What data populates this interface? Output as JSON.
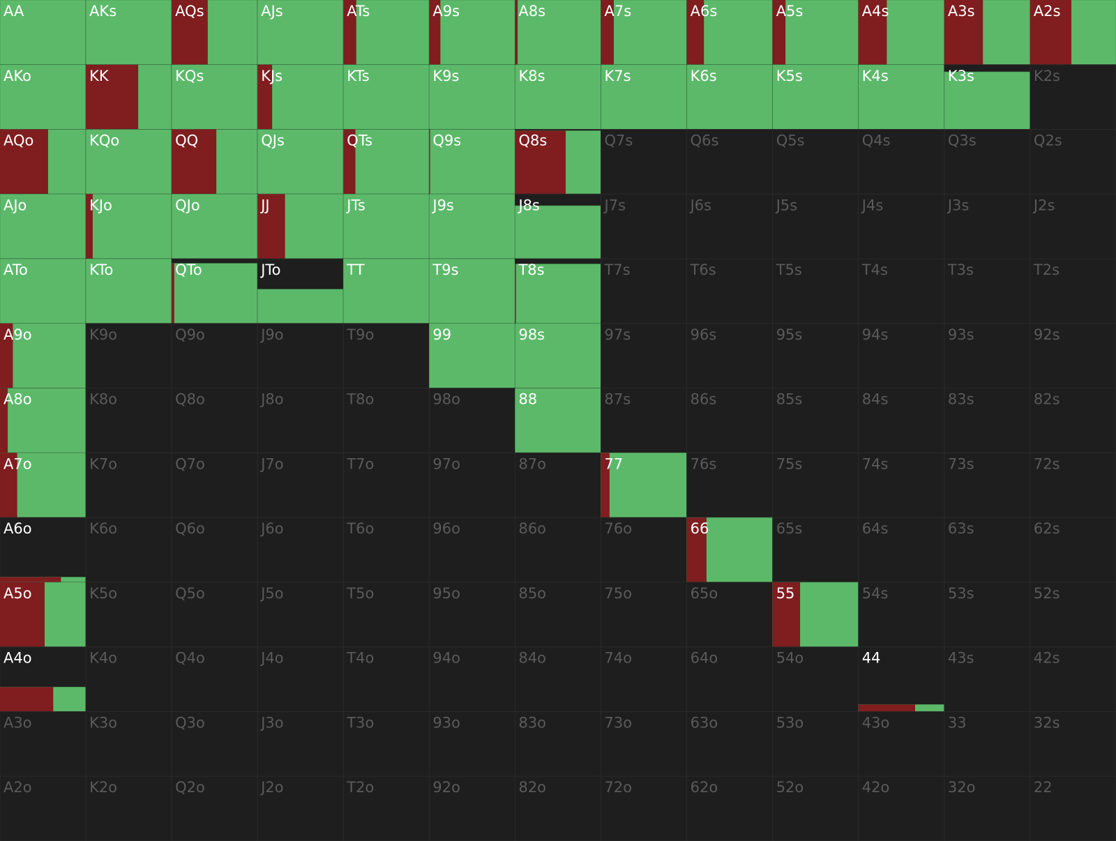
{
  "hands": [
    [
      {
        "label": "AA",
        "freq": 100,
        "raise": 0
      },
      {
        "label": "AKs",
        "freq": 100,
        "raise": 0
      },
      {
        "label": "AQs",
        "freq": 100,
        "raise": 42
      },
      {
        "label": "AJs",
        "freq": 100,
        "raise": 0
      },
      {
        "label": "ATs",
        "freq": 100,
        "raise": 15
      },
      {
        "label": "A9s",
        "freq": 100,
        "raise": 13
      },
      {
        "label": "A8s",
        "freq": 100,
        "raise": 3
      },
      {
        "label": "A7s",
        "freq": 100,
        "raise": 15
      },
      {
        "label": "A6s",
        "freq": 100,
        "raise": 20
      },
      {
        "label": "A5s",
        "freq": 100,
        "raise": 15
      },
      {
        "label": "A4s",
        "freq": 100,
        "raise": 33
      },
      {
        "label": "A3s",
        "freq": 100,
        "raise": 45
      },
      {
        "label": "A2s",
        "freq": 100,
        "raise": 48
      }
    ],
    [
      {
        "label": "AKo",
        "freq": 100,
        "raise": 0
      },
      {
        "label": "KK",
        "freq": 100,
        "raise": 61
      },
      {
        "label": "KQs",
        "freq": 100,
        "raise": 0
      },
      {
        "label": "KJs",
        "freq": 100,
        "raise": 17
      },
      {
        "label": "KTs",
        "freq": 100,
        "raise": 0
      },
      {
        "label": "K9s",
        "freq": 100,
        "raise": 0
      },
      {
        "label": "K8s",
        "freq": 100,
        "raise": 0
      },
      {
        "label": "K7s",
        "freq": 100,
        "raise": 0
      },
      {
        "label": "K6s",
        "freq": 100,
        "raise": 0
      },
      {
        "label": "K5s",
        "freq": 100,
        "raise": 0
      },
      {
        "label": "K4s",
        "freq": 100,
        "raise": 0
      },
      {
        "label": "K3s",
        "freq": 89,
        "raise": 0
      },
      {
        "label": "K2s",
        "freq": 0,
        "raise": 0
      }
    ],
    [
      {
        "label": "AQo",
        "freq": 100,
        "raise": 56
      },
      {
        "label": "KQo",
        "freq": 100,
        "raise": 0
      },
      {
        "label": "QQ",
        "freq": 100,
        "raise": 52
      },
      {
        "label": "QJs",
        "freq": 100,
        "raise": 0
      },
      {
        "label": "QTs",
        "freq": 100,
        "raise": 14
      },
      {
        "label": "Q9s",
        "freq": 100,
        "raise": 1
      },
      {
        "label": "Q8s",
        "freq": 98,
        "raise": 59
      },
      {
        "label": "Q7s",
        "freq": 0,
        "raise": 0
      },
      {
        "label": "Q6s",
        "freq": 0,
        "raise": 0
      },
      {
        "label": "Q5s",
        "freq": 0,
        "raise": 0
      },
      {
        "label": "Q4s",
        "freq": 0,
        "raise": 0
      },
      {
        "label": "Q3s",
        "freq": 0,
        "raise": 0
      },
      {
        "label": "Q2s",
        "freq": 0,
        "raise": 0
      }
    ],
    [
      {
        "label": "AJo",
        "freq": 100,
        "raise": 0
      },
      {
        "label": "KJo",
        "freq": 100,
        "raise": 8
      },
      {
        "label": "QJo",
        "freq": 100,
        "raise": 0
      },
      {
        "label": "JJ",
        "freq": 100,
        "raise": 32
      },
      {
        "label": "JTs",
        "freq": 100,
        "raise": 0
      },
      {
        "label": "J9s",
        "freq": 100,
        "raise": 0
      },
      {
        "label": "J8s",
        "freq": 82,
        "raise": 0
      },
      {
        "label": "J7s",
        "freq": 0,
        "raise": 0
      },
      {
        "label": "J6s",
        "freq": 0,
        "raise": 0
      },
      {
        "label": "J5s",
        "freq": 0,
        "raise": 0
      },
      {
        "label": "J4s",
        "freq": 0,
        "raise": 0
      },
      {
        "label": "J3s",
        "freq": 0,
        "raise": 0
      },
      {
        "label": "J2s",
        "freq": 0,
        "raise": 0
      }
    ],
    [
      {
        "label": "ATo",
        "freq": 100,
        "raise": 0
      },
      {
        "label": "KTo",
        "freq": 100,
        "raise": 0
      },
      {
        "label": "QTo",
        "freq": 93,
        "raise": 3
      },
      {
        "label": "JTo",
        "freq": 53,
        "raise": 0
      },
      {
        "label": "TT",
        "freq": 100,
        "raise": 0
      },
      {
        "label": "T9s",
        "freq": 100,
        "raise": 0
      },
      {
        "label": "T8s",
        "freq": 92,
        "raise": 1
      },
      {
        "label": "T7s",
        "freq": 0,
        "raise": 0
      },
      {
        "label": "T6s",
        "freq": 0,
        "raise": 0
      },
      {
        "label": "T5s",
        "freq": 0,
        "raise": 0
      },
      {
        "label": "T4s",
        "freq": 0,
        "raise": 0
      },
      {
        "label": "T3s",
        "freq": 0,
        "raise": 0
      },
      {
        "label": "T2s",
        "freq": 0,
        "raise": 0
      }
    ],
    [
      {
        "label": "A9o",
        "freq": 100,
        "raise": 15
      },
      {
        "label": "K9o",
        "freq": 0,
        "raise": 0
      },
      {
        "label": "Q9o",
        "freq": 0,
        "raise": 0
      },
      {
        "label": "J9o",
        "freq": 0,
        "raise": 0
      },
      {
        "label": "T9o",
        "freq": 0,
        "raise": 0
      },
      {
        "label": "99",
        "freq": 100,
        "raise": 0
      },
      {
        "label": "98s",
        "freq": 100,
        "raise": 0
      },
      {
        "label": "97s",
        "freq": 0,
        "raise": 0
      },
      {
        "label": "96s",
        "freq": 0,
        "raise": 0
      },
      {
        "label": "95s",
        "freq": 0,
        "raise": 0
      },
      {
        "label": "94s",
        "freq": 0,
        "raise": 0
      },
      {
        "label": "93s",
        "freq": 0,
        "raise": 0
      },
      {
        "label": "92s",
        "freq": 0,
        "raise": 0
      }
    ],
    [
      {
        "label": "A8o",
        "freq": 100,
        "raise": 9
      },
      {
        "label": "K8o",
        "freq": 0,
        "raise": 0
      },
      {
        "label": "Q8o",
        "freq": 0,
        "raise": 0
      },
      {
        "label": "J8o",
        "freq": 0,
        "raise": 0
      },
      {
        "label": "T8o",
        "freq": 0,
        "raise": 0
      },
      {
        "label": "98o",
        "freq": 0,
        "raise": 0
      },
      {
        "label": "88",
        "freq": 100,
        "raise": 0
      },
      {
        "label": "87s",
        "freq": 0,
        "raise": 0
      },
      {
        "label": "86s",
        "freq": 0,
        "raise": 0
      },
      {
        "label": "85s",
        "freq": 0,
        "raise": 0
      },
      {
        "label": "84s",
        "freq": 0,
        "raise": 0
      },
      {
        "label": "83s",
        "freq": 0,
        "raise": 0
      },
      {
        "label": "82s",
        "freq": 0,
        "raise": 0
      }
    ],
    [
      {
        "label": "A7o",
        "freq": 100,
        "raise": 20
      },
      {
        "label": "K7o",
        "freq": 0,
        "raise": 0
      },
      {
        "label": "Q7o",
        "freq": 0,
        "raise": 0
      },
      {
        "label": "J7o",
        "freq": 0,
        "raise": 0
      },
      {
        "label": "T7o",
        "freq": 0,
        "raise": 0
      },
      {
        "label": "97o",
        "freq": 0,
        "raise": 0
      },
      {
        "label": "87o",
        "freq": 0,
        "raise": 0
      },
      {
        "label": "77",
        "freq": 100,
        "raise": 10
      },
      {
        "label": "76s",
        "freq": 0,
        "raise": 0
      },
      {
        "label": "75s",
        "freq": 0,
        "raise": 0
      },
      {
        "label": "74s",
        "freq": 0,
        "raise": 0
      },
      {
        "label": "73s",
        "freq": 0,
        "raise": 0
      },
      {
        "label": "72s",
        "freq": 0,
        "raise": 0
      }
    ],
    [
      {
        "label": "A6o",
        "freq": 8,
        "raise": 71
      },
      {
        "label": "K6o",
        "freq": 0,
        "raise": 0
      },
      {
        "label": "Q6o",
        "freq": 0,
        "raise": 0
      },
      {
        "label": "J6o",
        "freq": 0,
        "raise": 0
      },
      {
        "label": "T6o",
        "freq": 0,
        "raise": 0
      },
      {
        "label": "96o",
        "freq": 0,
        "raise": 0
      },
      {
        "label": "86o",
        "freq": 0,
        "raise": 0
      },
      {
        "label": "76o",
        "freq": 0,
        "raise": 0
      },
      {
        "label": "66",
        "freq": 100,
        "raise": 23
      },
      {
        "label": "65s",
        "freq": 0,
        "raise": 0
      },
      {
        "label": "64s",
        "freq": 0,
        "raise": 0
      },
      {
        "label": "63s",
        "freq": 0,
        "raise": 0
      },
      {
        "label": "62s",
        "freq": 0,
        "raise": 0
      }
    ],
    [
      {
        "label": "A5o",
        "freq": 100,
        "raise": 52
      },
      {
        "label": "K5o",
        "freq": 0,
        "raise": 0
      },
      {
        "label": "Q5o",
        "freq": 0,
        "raise": 0
      },
      {
        "label": "J5o",
        "freq": 0,
        "raise": 0
      },
      {
        "label": "T5o",
        "freq": 0,
        "raise": 0
      },
      {
        "label": "95o",
        "freq": 0,
        "raise": 0
      },
      {
        "label": "85o",
        "freq": 0,
        "raise": 0
      },
      {
        "label": "75o",
        "freq": 0,
        "raise": 0
      },
      {
        "label": "65o",
        "freq": 0,
        "raise": 0
      },
      {
        "label": "55",
        "freq": 100,
        "raise": 32
      },
      {
        "label": "54s",
        "freq": 0,
        "raise": 0
      },
      {
        "label": "53s",
        "freq": 0,
        "raise": 0
      },
      {
        "label": "52s",
        "freq": 0,
        "raise": 0
      }
    ],
    [
      {
        "label": "A4o",
        "freq": 38,
        "raise": 62
      },
      {
        "label": "K4o",
        "freq": 0,
        "raise": 0
      },
      {
        "label": "Q4o",
        "freq": 0,
        "raise": 0
      },
      {
        "label": "J4o",
        "freq": 0,
        "raise": 0
      },
      {
        "label": "T4o",
        "freq": 0,
        "raise": 0
      },
      {
        "label": "94o",
        "freq": 0,
        "raise": 0
      },
      {
        "label": "84o",
        "freq": 0,
        "raise": 0
      },
      {
        "label": "74o",
        "freq": 0,
        "raise": 0
      },
      {
        "label": "64o",
        "freq": 0,
        "raise": 0
      },
      {
        "label": "54o",
        "freq": 0,
        "raise": 0
      },
      {
        "label": "44",
        "freq": 11,
        "raise": 66
      },
      {
        "label": "43s",
        "freq": 0,
        "raise": 0
      },
      {
        "label": "42s",
        "freq": 0,
        "raise": 0
      }
    ],
    [
      {
        "label": "A3o",
        "freq": 0,
        "raise": 0
      },
      {
        "label": "K3o",
        "freq": 0,
        "raise": 0
      },
      {
        "label": "Q3o",
        "freq": 0,
        "raise": 0
      },
      {
        "label": "J3o",
        "freq": 0,
        "raise": 0
      },
      {
        "label": "T3o",
        "freq": 0,
        "raise": 0
      },
      {
        "label": "93o",
        "freq": 0,
        "raise": 0
      },
      {
        "label": "83o",
        "freq": 0,
        "raise": 0
      },
      {
        "label": "73o",
        "freq": 0,
        "raise": 0
      },
      {
        "label": "63o",
        "freq": 0,
        "raise": 0
      },
      {
        "label": "53o",
        "freq": 0,
        "raise": 0
      },
      {
        "label": "43o",
        "freq": 0,
        "raise": 0
      },
      {
        "label": "33",
        "freq": 0,
        "raise": 0
      },
      {
        "label": "32s",
        "freq": 0,
        "raise": 0
      }
    ],
    [
      {
        "label": "A2o",
        "freq": 0,
        "raise": 0
      },
      {
        "label": "K2o",
        "freq": 0,
        "raise": 0
      },
      {
        "label": "Q2o",
        "freq": 0,
        "raise": 0
      },
      {
        "label": "J2o",
        "freq": 0,
        "raise": 0
      },
      {
        "label": "T2o",
        "freq": 0,
        "raise": 0
      },
      {
        "label": "92o",
        "freq": 0,
        "raise": 0
      },
      {
        "label": "82o",
        "freq": 0,
        "raise": 0
      },
      {
        "label": "72o",
        "freq": 0,
        "raise": 0
      },
      {
        "label": "62o",
        "freq": 0,
        "raise": 0
      },
      {
        "label": "52o",
        "freq": 0,
        "raise": 0
      },
      {
        "label": "42o",
        "freq": 0,
        "raise": 0
      },
      {
        "label": "32o",
        "freq": 0,
        "raise": 0
      },
      {
        "label": "22",
        "freq": 0,
        "raise": 0
      }
    ]
  ]
}
